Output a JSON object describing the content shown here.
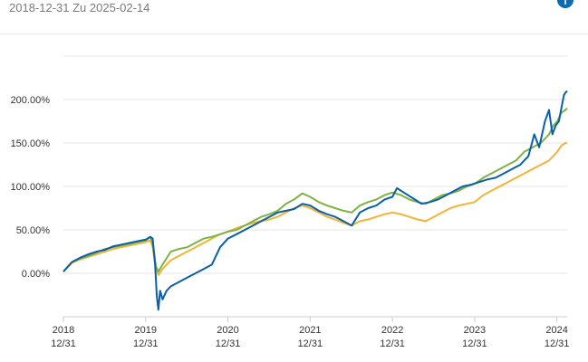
{
  "header": {
    "date_range": "2018-12-31 Zu 2025-02-14",
    "info_icon": "info-icon"
  },
  "colors": {
    "series_blue": "#0a5fa8",
    "series_green": "#7cb342",
    "series_orange": "#f5b335",
    "grid": "#e6e6e6",
    "axis_text": "#333333"
  },
  "chart_data": {
    "type": "line",
    "title": "",
    "xlabel": "",
    "ylabel": "",
    "ylim": [
      -0.5,
      2.5
    ],
    "y_ticks": [
      0,
      0.5,
      1.0,
      1.5,
      2.0
    ],
    "y_tick_labels": [
      "0.00%",
      "50.00%",
      "100.00%",
      "150.00%",
      "200.00%"
    ],
    "x_range": [
      2018.995,
      2025.12
    ],
    "x_ticks": [
      {
        "pos": 2018.995,
        "year": "2018",
        "day": "12/31"
      },
      {
        "pos": 2019.995,
        "year": "2019",
        "day": "12/31"
      },
      {
        "pos": 2020.995,
        "year": "2020",
        "day": "12/31"
      },
      {
        "pos": 2021.995,
        "year": "2021",
        "day": "12/31"
      },
      {
        "pos": 2022.995,
        "year": "2022",
        "day": "12/31"
      },
      {
        "pos": 2023.995,
        "year": "2023",
        "day": "12/31"
      },
      {
        "pos": 2024.995,
        "year": "2024",
        "day": "12/31"
      }
    ],
    "grid": true,
    "legend": "none",
    "series": [
      {
        "color": "#0a5fa8",
        "points": [
          [
            2018.995,
            0.02
          ],
          [
            2019.1,
            0.13
          ],
          [
            2019.2,
            0.18
          ],
          [
            2019.3,
            0.22
          ],
          [
            2019.4,
            0.25
          ],
          [
            2019.5,
            0.27
          ],
          [
            2019.6,
            0.31
          ],
          [
            2019.7,
            0.33
          ],
          [
            2019.8,
            0.35
          ],
          [
            2019.9,
            0.37
          ],
          [
            2020.0,
            0.39
          ],
          [
            2020.05,
            0.42
          ],
          [
            2020.08,
            0.4
          ],
          [
            2020.11,
            0.1
          ],
          [
            2020.13,
            -0.25
          ],
          [
            2020.15,
            -0.42
          ],
          [
            2020.17,
            -0.2
          ],
          [
            2020.2,
            -0.3
          ],
          [
            2020.25,
            -0.2
          ],
          [
            2020.3,
            -0.15
          ],
          [
            2020.4,
            -0.1
          ],
          [
            2020.5,
            -0.05
          ],
          [
            2020.6,
            0.0
          ],
          [
            2020.7,
            0.05
          ],
          [
            2020.8,
            0.1
          ],
          [
            2020.9,
            0.3
          ],
          [
            2020.995,
            0.4
          ],
          [
            2021.1,
            0.45
          ],
          [
            2021.2,
            0.5
          ],
          [
            2021.3,
            0.55
          ],
          [
            2021.4,
            0.6
          ],
          [
            2021.5,
            0.65
          ],
          [
            2021.6,
            0.7
          ],
          [
            2021.7,
            0.72
          ],
          [
            2021.8,
            0.74
          ],
          [
            2021.9,
            0.8
          ],
          [
            2021.995,
            0.78
          ],
          [
            2022.1,
            0.72
          ],
          [
            2022.2,
            0.68
          ],
          [
            2022.3,
            0.65
          ],
          [
            2022.4,
            0.6
          ],
          [
            2022.5,
            0.55
          ],
          [
            2022.6,
            0.7
          ],
          [
            2022.7,
            0.75
          ],
          [
            2022.8,
            0.78
          ],
          [
            2022.9,
            0.85
          ],
          [
            2022.995,
            0.88
          ],
          [
            2023.05,
            0.98
          ],
          [
            2023.15,
            0.92
          ],
          [
            2023.25,
            0.86
          ],
          [
            2023.35,
            0.8
          ],
          [
            2023.45,
            0.82
          ],
          [
            2023.55,
            0.85
          ],
          [
            2023.65,
            0.9
          ],
          [
            2023.75,
            0.95
          ],
          [
            2023.85,
            1.0
          ],
          [
            2023.95,
            1.02
          ],
          [
            2024.05,
            1.05
          ],
          [
            2024.15,
            1.08
          ],
          [
            2024.25,
            1.1
          ],
          [
            2024.35,
            1.15
          ],
          [
            2024.45,
            1.2
          ],
          [
            2024.55,
            1.25
          ],
          [
            2024.6,
            1.3
          ],
          [
            2024.65,
            1.35
          ],
          [
            2024.72,
            1.6
          ],
          [
            2024.78,
            1.45
          ],
          [
            2024.85,
            1.75
          ],
          [
            2024.9,
            1.88
          ],
          [
            2024.94,
            1.6
          ],
          [
            2024.98,
            1.7
          ],
          [
            2025.02,
            1.75
          ],
          [
            2025.05,
            1.9
          ],
          [
            2025.08,
            2.05
          ],
          [
            2025.1,
            2.08
          ],
          [
            2025.12,
            2.1
          ]
        ]
      },
      {
        "color": "#7cb342",
        "points": [
          [
            2018.995,
            0.02
          ],
          [
            2019.1,
            0.13
          ],
          [
            2019.2,
            0.17
          ],
          [
            2019.3,
            0.2
          ],
          [
            2019.4,
            0.24
          ],
          [
            2019.5,
            0.28
          ],
          [
            2019.6,
            0.3
          ],
          [
            2019.7,
            0.32
          ],
          [
            2019.8,
            0.34
          ],
          [
            2019.9,
            0.36
          ],
          [
            2020.0,
            0.38
          ],
          [
            2020.05,
            0.42
          ],
          [
            2020.08,
            0.35
          ],
          [
            2020.12,
            0.08
          ],
          [
            2020.15,
            0.02
          ],
          [
            2020.2,
            0.1
          ],
          [
            2020.3,
            0.25
          ],
          [
            2020.4,
            0.28
          ],
          [
            2020.5,
            0.3
          ],
          [
            2020.6,
            0.35
          ],
          [
            2020.7,
            0.4
          ],
          [
            2020.8,
            0.42
          ],
          [
            2020.9,
            0.45
          ],
          [
            2020.995,
            0.48
          ],
          [
            2021.1,
            0.5
          ],
          [
            2021.2,
            0.55
          ],
          [
            2021.3,
            0.6
          ],
          [
            2021.4,
            0.65
          ],
          [
            2021.5,
            0.68
          ],
          [
            2021.6,
            0.72
          ],
          [
            2021.7,
            0.8
          ],
          [
            2021.8,
            0.85
          ],
          [
            2021.9,
            0.92
          ],
          [
            2021.995,
            0.88
          ],
          [
            2022.1,
            0.82
          ],
          [
            2022.2,
            0.78
          ],
          [
            2022.3,
            0.75
          ],
          [
            2022.4,
            0.72
          ],
          [
            2022.5,
            0.7
          ],
          [
            2022.6,
            0.78
          ],
          [
            2022.7,
            0.82
          ],
          [
            2022.8,
            0.85
          ],
          [
            2022.9,
            0.9
          ],
          [
            2022.995,
            0.93
          ],
          [
            2023.1,
            0.9
          ],
          [
            2023.2,
            0.85
          ],
          [
            2023.3,
            0.82
          ],
          [
            2023.4,
            0.8
          ],
          [
            2023.5,
            0.85
          ],
          [
            2023.6,
            0.9
          ],
          [
            2023.7,
            0.92
          ],
          [
            2023.8,
            0.95
          ],
          [
            2023.9,
            1.0
          ],
          [
            2023.995,
            1.03
          ],
          [
            2024.1,
            1.1
          ],
          [
            2024.2,
            1.15
          ],
          [
            2024.3,
            1.2
          ],
          [
            2024.4,
            1.25
          ],
          [
            2024.5,
            1.3
          ],
          [
            2024.6,
            1.4
          ],
          [
            2024.7,
            1.45
          ],
          [
            2024.8,
            1.5
          ],
          [
            2024.9,
            1.6
          ],
          [
            2024.95,
            1.7
          ],
          [
            2025.0,
            1.75
          ],
          [
            2025.05,
            1.85
          ],
          [
            2025.1,
            1.88
          ],
          [
            2025.12,
            1.9
          ]
        ]
      },
      {
        "color": "#f5b335",
        "points": [
          [
            2018.995,
            0.02
          ],
          [
            2019.1,
            0.12
          ],
          [
            2019.2,
            0.16
          ],
          [
            2019.3,
            0.19
          ],
          [
            2019.4,
            0.22
          ],
          [
            2019.5,
            0.25
          ],
          [
            2019.6,
            0.28
          ],
          [
            2019.7,
            0.3
          ],
          [
            2019.8,
            0.32
          ],
          [
            2019.9,
            0.34
          ],
          [
            2020.0,
            0.36
          ],
          [
            2020.05,
            0.38
          ],
          [
            2020.08,
            0.3
          ],
          [
            2020.12,
            0.05
          ],
          [
            2020.15,
            -0.02
          ],
          [
            2020.2,
            0.05
          ],
          [
            2020.3,
            0.15
          ],
          [
            2020.4,
            0.2
          ],
          [
            2020.5,
            0.25
          ],
          [
            2020.6,
            0.3
          ],
          [
            2020.7,
            0.35
          ],
          [
            2020.8,
            0.4
          ],
          [
            2020.9,
            0.45
          ],
          [
            2020.995,
            0.48
          ],
          [
            2021.1,
            0.52
          ],
          [
            2021.2,
            0.55
          ],
          [
            2021.3,
            0.58
          ],
          [
            2021.4,
            0.6
          ],
          [
            2021.5,
            0.62
          ],
          [
            2021.6,
            0.65
          ],
          [
            2021.7,
            0.7
          ],
          [
            2021.8,
            0.75
          ],
          [
            2021.9,
            0.78
          ],
          [
            2021.995,
            0.75
          ],
          [
            2022.1,
            0.7
          ],
          [
            2022.2,
            0.65
          ],
          [
            2022.3,
            0.62
          ],
          [
            2022.4,
            0.58
          ],
          [
            2022.5,
            0.55
          ],
          [
            2022.6,
            0.6
          ],
          [
            2022.7,
            0.62
          ],
          [
            2022.8,
            0.65
          ],
          [
            2022.9,
            0.68
          ],
          [
            2022.995,
            0.7
          ],
          [
            2023.1,
            0.68
          ],
          [
            2023.2,
            0.65
          ],
          [
            2023.3,
            0.62
          ],
          [
            2023.4,
            0.6
          ],
          [
            2023.5,
            0.65
          ],
          [
            2023.6,
            0.7
          ],
          [
            2023.7,
            0.75
          ],
          [
            2023.8,
            0.78
          ],
          [
            2023.9,
            0.8
          ],
          [
            2023.995,
            0.82
          ],
          [
            2024.1,
            0.9
          ],
          [
            2024.2,
            0.95
          ],
          [
            2024.3,
            1.0
          ],
          [
            2024.4,
            1.05
          ],
          [
            2024.5,
            1.1
          ],
          [
            2024.6,
            1.15
          ],
          [
            2024.7,
            1.2
          ],
          [
            2024.8,
            1.25
          ],
          [
            2024.9,
            1.3
          ],
          [
            2024.95,
            1.35
          ],
          [
            2025.0,
            1.4
          ],
          [
            2025.05,
            1.47
          ],
          [
            2025.1,
            1.5
          ],
          [
            2025.12,
            1.5
          ]
        ]
      }
    ]
  }
}
